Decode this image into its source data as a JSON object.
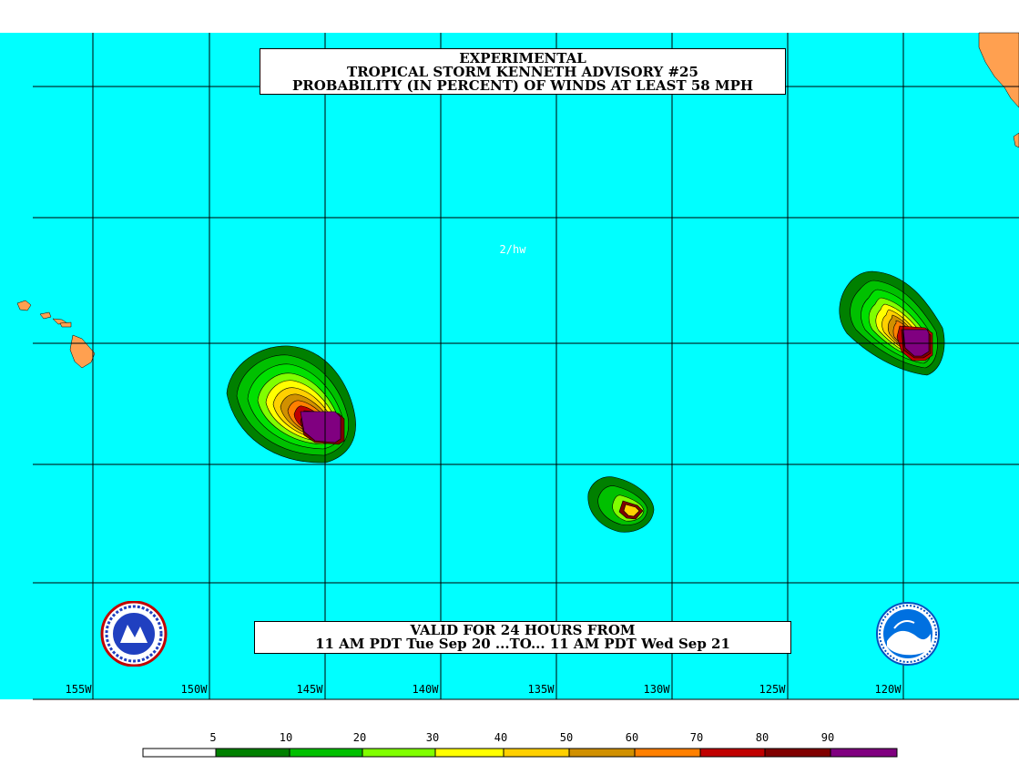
{
  "title": {
    "line1": "EXPERIMENTAL",
    "line2": "TROPICAL STORM KENNETH ADVISORY #25",
    "line3": "PROBABILITY (IN PERCENT) OF WINDS AT LEAST 58 MPH"
  },
  "forecaster_initials": "2/hw",
  "valid": {
    "line1": "VALID FOR 24 HOURS FROM",
    "line2": "11 AM PDT Tue Sep 20 ...TO... 11 AM PDT Wed Sep 21"
  },
  "longitude_labels": [
    "155W",
    "150W",
    "145W",
    "140W",
    "135W",
    "130W",
    "125W",
    "120W"
  ],
  "legend": {
    "labels": [
      "5",
      "10",
      "20",
      "30",
      "40",
      "50",
      "60",
      "70",
      "80",
      "90"
    ],
    "colors": [
      "#ffffff",
      "#008000",
      "#00c000",
      "#00e000",
      "#80ff00",
      "#ffff00",
      "#ffd000",
      "#d09000",
      "#ff8000",
      "#c00000",
      "#800000",
      "#800080"
    ]
  },
  "colors": {
    "ocean": "#00ffff",
    "land": "#ffa050",
    "grid": "#000000"
  },
  "icons": {
    "left_logo": "nws-logo-icon",
    "right_logo": "noaa-logo-icon"
  }
}
